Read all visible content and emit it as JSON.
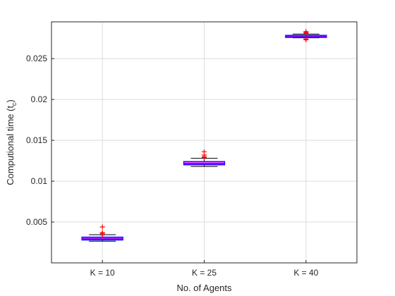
{
  "chart_data": {
    "type": "box",
    "xlabel": "No. of Agents",
    "ylabel": {
      "main": "Computional time (t",
      "subscript": "c",
      "close": ")"
    },
    "categories": [
      "K = 10",
      "K = 25",
      "K = 40"
    ],
    "ylim": [
      0.0,
      0.0295
    ],
    "yticks": [
      0.005,
      0.01,
      0.015,
      0.02,
      0.025
    ],
    "ytick_labels": [
      "0.005",
      "0.01",
      "0.015",
      "0.02",
      "0.025"
    ],
    "grid": true,
    "boxes": [
      {
        "category": "K = 10",
        "whisker_low": 0.00265,
        "q1": 0.0028,
        "median": 0.00295,
        "q3": 0.00315,
        "whisker_high": 0.00345,
        "outliers": [
          0.0044,
          0.0037,
          0.0036,
          0.0034
        ]
      },
      {
        "category": "K = 25",
        "whisker_low": 0.0118,
        "q1": 0.012,
        "median": 0.01215,
        "q3": 0.0124,
        "whisker_high": 0.0128,
        "outliers": [
          0.0136,
          0.0132,
          0.013,
          0.0129
        ]
      },
      {
        "category": "K = 40",
        "whisker_low": 0.02755,
        "q1": 0.02765,
        "median": 0.02775,
        "q3": 0.02785,
        "whisker_high": 0.028,
        "outliers": [
          0.0283,
          0.0282,
          0.0281,
          0.0274,
          0.0273
        ]
      }
    ],
    "colors": {
      "box_edge": "#0000ff",
      "box_fill": "#ff66ff",
      "median": "#7f00ff",
      "whisker": "#000000",
      "outlier": "#ff0000",
      "grid": "#dcdcdc",
      "axis": "#262626"
    }
  }
}
